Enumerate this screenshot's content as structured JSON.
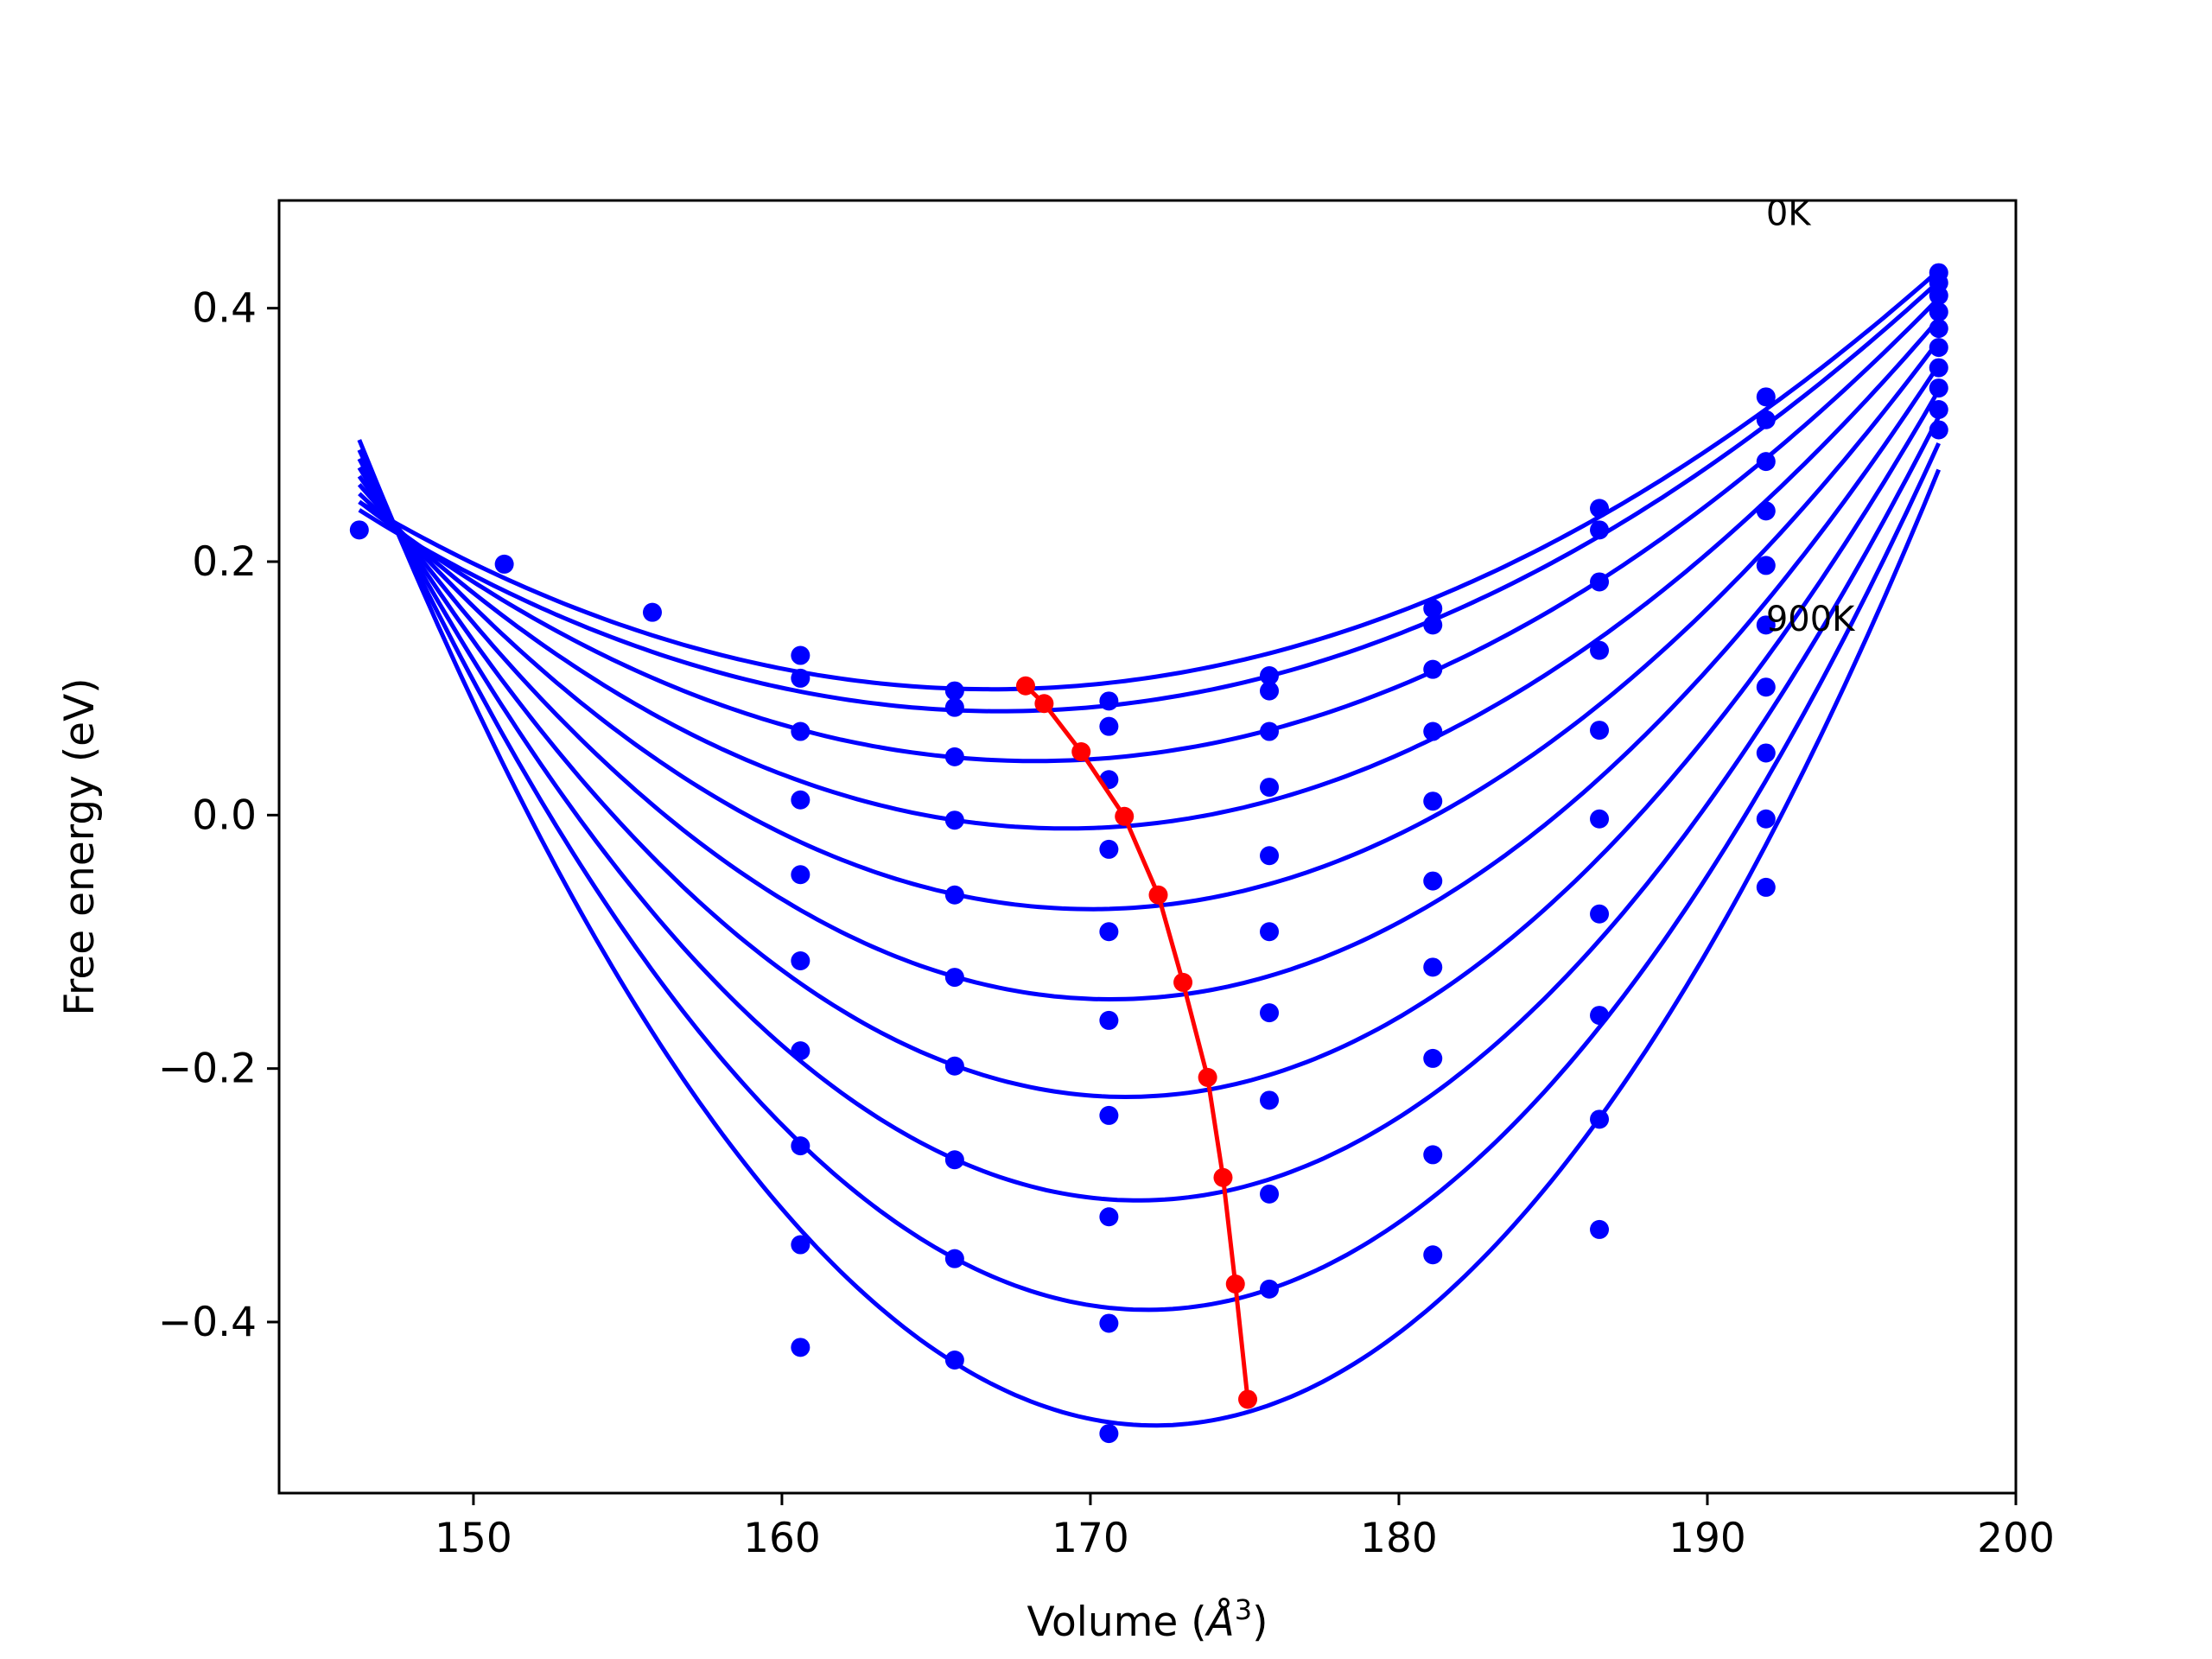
{
  "chart_data": {
    "type": "line",
    "xlabel": "Volume (",
    "xlabel_symbol": "Å",
    "xlabel_sup": "3",
    "xlabel_close": ")",
    "ylabel": "Free energy (eV)",
    "xlim": [
      143.7,
      200.0
    ],
    "ylim": [
      -0.535,
      0.485
    ],
    "xticks": [
      150,
      160,
      170,
      180,
      190,
      200
    ],
    "xtick_labels": [
      "150",
      "160",
      "170",
      "180",
      "190",
      "200"
    ],
    "yticks": [
      -0.4,
      -0.2,
      0.0,
      0.2,
      0.4
    ],
    "ytick_labels": [
      "−0.4",
      "−0.2",
      "0.0",
      "0.2",
      "0.4"
    ],
    "grid": false,
    "legend": false,
    "annotations": [
      {
        "text": "0K",
        "x": 191.9,
        "y": 0.475
      },
      {
        "text": "900K",
        "x": 191.9,
        "y": 0.155
      }
    ],
    "colors": {
      "fit": "#0000ff",
      "points": "#0000ff",
      "minimum": "#ff0000"
    },
    "volumes": [
      146.3,
      151.0,
      155.8,
      160.6,
      165.6,
      170.6,
      175.8,
      181.1,
      186.5,
      191.9,
      197.5
    ],
    "series": [
      {
        "minimum": [
          167.9,
          0.102
        ],
        "fit_x_range": [
          146.3,
          197.5
        ],
        "points": [
          [
            146.3,
            0.225
          ],
          [
            151.0,
            0.198
          ],
          [
            155.8,
            0.16
          ],
          [
            160.6,
            0.126
          ],
          [
            165.6,
            0.098
          ],
          [
            170.6,
            0.09
          ],
          [
            175.8,
            0.11
          ],
          [
            181.1,
            0.163
          ],
          [
            186.5,
            0.242
          ],
          [
            191.9,
            0.33
          ],
          [
            197.5,
            0.428
          ]
        ]
      },
      {
        "minimum": [
          168.5,
          0.088
        ],
        "fit_x_range": [
          146.3,
          197.5
        ],
        "points": [
          [
            160.6,
            0.108
          ],
          [
            165.6,
            0.085
          ],
          [
            170.6,
            0.07
          ],
          [
            175.8,
            0.098
          ],
          [
            181.1,
            0.15
          ],
          [
            186.5,
            0.225
          ],
          [
            191.9,
            0.312
          ],
          [
            197.5,
            0.42
          ]
        ]
      },
      {
        "minimum": [
          169.7,
          0.05
        ],
        "fit_x_range": [
          146.3,
          197.5
        ],
        "points": [
          [
            160.6,
            0.066
          ],
          [
            165.6,
            0.046
          ],
          [
            170.6,
            0.028
          ],
          [
            175.8,
            0.066
          ],
          [
            181.1,
            0.115
          ],
          [
            186.5,
            0.184
          ],
          [
            191.9,
            0.279
          ],
          [
            197.5,
            0.41
          ]
        ]
      },
      {
        "minimum": [
          171.1,
          -0.001
        ],
        "fit_x_range": [
          146.3,
          197.5
        ],
        "points": [
          [
            160.6,
            0.012
          ],
          [
            165.6,
            -0.004
          ],
          [
            170.6,
            -0.027
          ],
          [
            175.8,
            0.022
          ],
          [
            181.1,
            0.066
          ],
          [
            186.5,
            0.13
          ],
          [
            191.9,
            0.24
          ],
          [
            197.5,
            0.397
          ]
        ]
      },
      {
        "minimum": [
          172.2,
          -0.063
        ],
        "fit_x_range": [
          146.3,
          197.5
        ],
        "points": [
          [
            160.6,
            -0.047
          ],
          [
            165.6,
            -0.063
          ],
          [
            170.6,
            -0.092
          ],
          [
            175.8,
            -0.032
          ],
          [
            181.1,
            0.011
          ],
          [
            186.5,
            0.067
          ],
          [
            191.9,
            0.197
          ],
          [
            197.5,
            0.384
          ]
        ]
      },
      {
        "minimum": [
          173.0,
          -0.132
        ],
        "fit_x_range": [
          146.3,
          197.5
        ],
        "points": [
          [
            160.6,
            -0.115
          ],
          [
            165.6,
            -0.128
          ],
          [
            170.6,
            -0.162
          ],
          [
            175.8,
            -0.092
          ],
          [
            181.1,
            -0.052
          ],
          [
            186.5,
            -0.003
          ],
          [
            191.9,
            0.15
          ],
          [
            197.5,
            0.369
          ]
        ]
      },
      {
        "minimum": [
          173.8,
          -0.207
        ],
        "fit_x_range": [
          146.3,
          197.5
        ],
        "points": [
          [
            160.6,
            -0.186
          ],
          [
            165.6,
            -0.198
          ],
          [
            170.6,
            -0.237
          ],
          [
            175.8,
            -0.156
          ],
          [
            181.1,
            -0.12
          ],
          [
            186.5,
            -0.078
          ],
          [
            191.9,
            0.101
          ],
          [
            197.5,
            0.353
          ]
        ]
      },
      {
        "minimum": [
          174.3,
          -0.286
        ],
        "fit_x_range": [
          146.3,
          197.5
        ],
        "points": [
          [
            160.6,
            -0.261
          ],
          [
            165.6,
            -0.272
          ],
          [
            170.6,
            -0.317
          ],
          [
            175.8,
            -0.225
          ],
          [
            181.1,
            -0.192
          ],
          [
            186.5,
            -0.158
          ],
          [
            191.9,
            0.049
          ],
          [
            197.5,
            0.337
          ]
        ]
      },
      {
        "minimum": [
          174.7,
          -0.37
        ],
        "fit_x_range": [
          146.3,
          197.5
        ],
        "points": [
          [
            160.6,
            -0.339
          ],
          [
            165.6,
            -0.35
          ],
          [
            170.6,
            -0.401
          ],
          [
            175.8,
            -0.299
          ],
          [
            181.1,
            -0.268
          ],
          [
            186.5,
            -0.24
          ],
          [
            191.9,
            -0.003
          ],
          [
            197.5,
            0.32
          ]
        ]
      },
      {
        "minimum": [
          175.1,
          -0.461
        ],
        "fit_x_range": [
          146.3,
          197.5
        ],
        "points": [
          [
            160.6,
            -0.42
          ],
          [
            165.6,
            -0.43
          ],
          [
            170.6,
            -0.488
          ],
          [
            175.8,
            -0.374
          ],
          [
            181.1,
            -0.347
          ],
          [
            186.5,
            -0.327
          ],
          [
            191.9,
            -0.057
          ],
          [
            197.5,
            0.304
          ]
        ]
      }
    ],
    "extra_points": [
      {
        "x": 146.3,
        "y": 0.225
      },
      {
        "x": 151.0,
        "y": 0.198
      },
      {
        "x": 155.8,
        "y": 0.16
      }
    ]
  }
}
